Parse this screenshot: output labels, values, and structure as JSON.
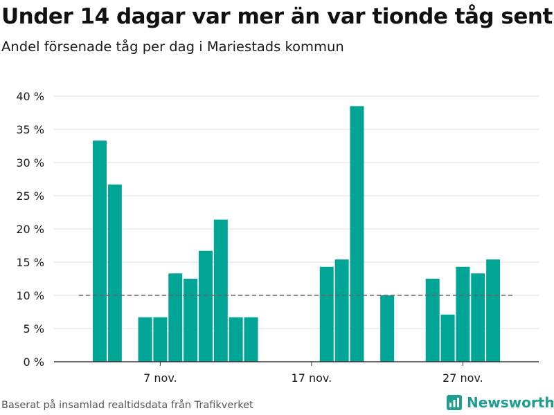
{
  "title": "Under 14 dagar var mer än var tionde tåg sent",
  "subtitle": "Andel försenade tåg per dag i Mariestads kommun",
  "footer": "Baserat på insamlad realtidsdata från Trafikverket",
  "brand": "Newsworthy",
  "colors": {
    "bar": "#00a596",
    "reference": "#666666",
    "grid": "#dddddd",
    "brand": "#1f9e8f"
  },
  "chart_data": {
    "type": "bar",
    "x_type": "date",
    "x": [
      "2020-11-02",
      "2020-11-03",
      "2020-11-04",
      "2020-11-05",
      "2020-11-06",
      "2020-11-07",
      "2020-11-08",
      "2020-11-09",
      "2020-11-10",
      "2020-11-11",
      "2020-11-12",
      "2020-11-13",
      "2020-11-14",
      "2020-11-15",
      "2020-11-16",
      "2020-11-17",
      "2020-11-18",
      "2020-11-19",
      "2020-11-20",
      "2020-11-21",
      "2020-11-22",
      "2020-11-23",
      "2020-11-24",
      "2020-11-25",
      "2020-11-26",
      "2020-11-27",
      "2020-11-28",
      "2020-11-29",
      "2020-11-30"
    ],
    "values": [
      0,
      33.3,
      26.7,
      0,
      6.7,
      6.7,
      13.3,
      12.5,
      16.7,
      21.4,
      6.7,
      6.7,
      0,
      0,
      0,
      0,
      14.3,
      15.4,
      38.5,
      0,
      10.0,
      0,
      0,
      12.5,
      7.1,
      14.3,
      13.3,
      15.4,
      0
    ],
    "reference_line": 10,
    "ylim": [
      0,
      40
    ],
    "yticks": [
      0,
      5,
      10,
      15,
      20,
      25,
      30,
      35,
      40
    ],
    "ytick_labels": [
      "0 %",
      "5 %",
      "10 %",
      "15 %",
      "20 %",
      "25 %",
      "30 %",
      "35 %",
      "40 %"
    ],
    "xticks": [
      "2020-11-07",
      "2020-11-17",
      "2020-11-27"
    ],
    "xtick_labels": [
      "7 nov.",
      "17 nov.",
      "27 nov."
    ],
    "grid": true
  }
}
